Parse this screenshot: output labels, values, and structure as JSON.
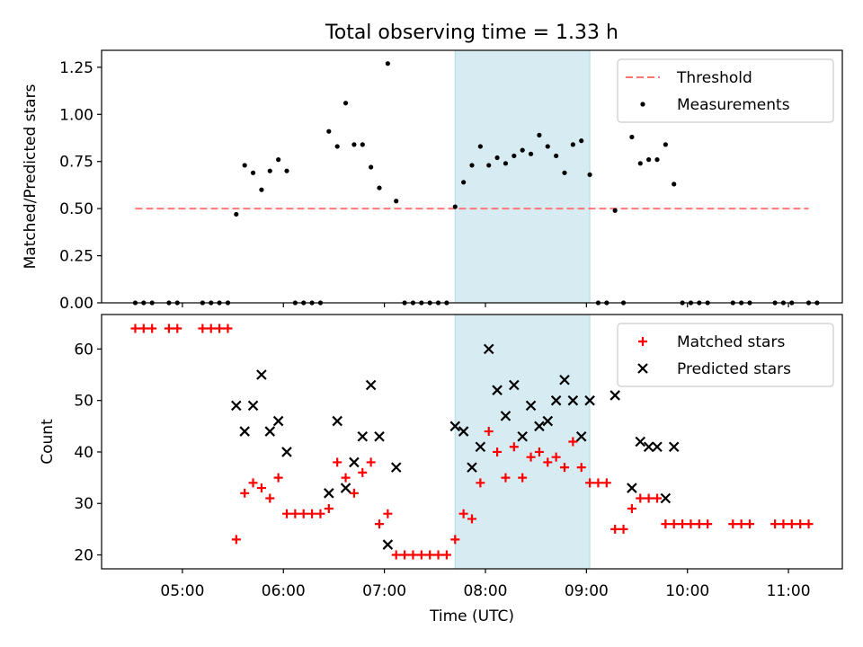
{
  "figure": {
    "title": "Total observing time = 1.33 h"
  },
  "chart_data": [
    {
      "type": "scatter",
      "panel": "top",
      "title": "Total observing time = 1.33 h",
      "xlabel": "",
      "ylabel": "Matched/Predicted stars",
      "xlim": [
        "04:12",
        "11:32"
      ],
      "ylim": [
        0,
        1.34
      ],
      "yticks": [
        "0.00",
        "0.25",
        "0.50",
        "0.75",
        "1.00",
        "1.25"
      ],
      "legend_position": "top-right",
      "shaded_interval": [
        "07:42",
        "09:02"
      ],
      "shaded_color": "#add8e6",
      "threshold": {
        "name": "Threshold",
        "value": 0.5,
        "x_range": [
          "04:32",
          "11:12"
        ],
        "color": "#ff7777",
        "style": "dashed"
      },
      "series": [
        {
          "name": "Measurements",
          "color": "#000000",
          "marker": "dot",
          "points": [
            [
              "04:32",
              0
            ],
            [
              "04:37",
              0
            ],
            [
              "04:42",
              0
            ],
            [
              "04:52",
              0
            ],
            [
              "04:57",
              0
            ],
            [
              "05:12",
              0
            ],
            [
              "05:17",
              0
            ],
            [
              "05:22",
              0
            ],
            [
              "05:27",
              0
            ],
            [
              "05:32",
              0.47
            ],
            [
              "05:37",
              0.73
            ],
            [
              "05:42",
              0.69
            ],
            [
              "05:47",
              0.6
            ],
            [
              "05:52",
              0.7
            ],
            [
              "05:57",
              0.76
            ],
            [
              "06:02",
              0.7
            ],
            [
              "06:07",
              0
            ],
            [
              "06:12",
              0
            ],
            [
              "06:17",
              0
            ],
            [
              "06:22",
              0
            ],
            [
              "06:27",
              0.91
            ],
            [
              "06:32",
              0.83
            ],
            [
              "06:37",
              1.06
            ],
            [
              "06:42",
              0.84
            ],
            [
              "06:47",
              0.84
            ],
            [
              "06:52",
              0.72
            ],
            [
              "06:57",
              0.61
            ],
            [
              "07:02",
              1.27
            ],
            [
              "07:07",
              0.54
            ],
            [
              "07:12",
              0
            ],
            [
              "07:17",
              0
            ],
            [
              "07:22",
              0
            ],
            [
              "07:27",
              0
            ],
            [
              "07:32",
              0
            ],
            [
              "07:37",
              0
            ],
            [
              "07:42",
              0.51
            ],
            [
              "07:47",
              0.64
            ],
            [
              "07:52",
              0.73
            ],
            [
              "07:57",
              0.83
            ],
            [
              "08:02",
              0.73
            ],
            [
              "08:07",
              0.77
            ],
            [
              "08:12",
              0.74
            ],
            [
              "08:17",
              0.78
            ],
            [
              "08:22",
              0.81
            ],
            [
              "08:27",
              0.79
            ],
            [
              "08:32",
              0.89
            ],
            [
              "08:37",
              0.83
            ],
            [
              "08:42",
              0.78
            ],
            [
              "08:47",
              0.69
            ],
            [
              "08:52",
              0.84
            ],
            [
              "08:57",
              0.86
            ],
            [
              "09:02",
              0.68
            ],
            [
              "09:07",
              0
            ],
            [
              "09:12",
              0
            ],
            [
              "09:17",
              0.49
            ],
            [
              "09:22",
              0
            ],
            [
              "09:27",
              0.88
            ],
            [
              "09:32",
              0.74
            ],
            [
              "09:37",
              0.76
            ],
            [
              "09:42",
              0.76
            ],
            [
              "09:47",
              0.84
            ],
            [
              "09:52",
              0.63
            ],
            [
              "09:57",
              0
            ],
            [
              "10:02",
              0
            ],
            [
              "10:07",
              0
            ],
            [
              "10:12",
              0
            ],
            [
              "10:27",
              0
            ],
            [
              "10:32",
              0
            ],
            [
              "10:37",
              0
            ],
            [
              "10:52",
              0
            ],
            [
              "10:57",
              0
            ],
            [
              "11:02",
              0
            ],
            [
              "11:12",
              0
            ],
            [
              "11:17",
              0
            ]
          ]
        }
      ]
    },
    {
      "type": "scatter",
      "panel": "bottom",
      "xlabel": "Time (UTC)",
      "ylabel": "Count",
      "xlim": [
        "04:12",
        "11:32"
      ],
      "ylim": [
        17.3,
        66.7
      ],
      "xticks": [
        "05:00",
        "06:00",
        "07:00",
        "08:00",
        "09:00",
        "10:00",
        "11:00"
      ],
      "yticks": [
        "20",
        "30",
        "40",
        "50",
        "60"
      ],
      "legend_position": "top-right",
      "shaded_interval": [
        "07:42",
        "09:02"
      ],
      "shaded_color": "#add8e6",
      "series": [
        {
          "name": "Matched stars",
          "color": "#ff0000",
          "marker": "plus",
          "points": [
            [
              "04:32",
              64
            ],
            [
              "04:37",
              64
            ],
            [
              "04:42",
              64
            ],
            [
              "04:52",
              64
            ],
            [
              "04:57",
              64
            ],
            [
              "05:12",
              64
            ],
            [
              "05:17",
              64
            ],
            [
              "05:22",
              64
            ],
            [
              "05:27",
              64
            ],
            [
              "05:32",
              23
            ],
            [
              "05:37",
              32
            ],
            [
              "05:42",
              34
            ],
            [
              "05:47",
              33
            ],
            [
              "05:52",
              31
            ],
            [
              "05:57",
              35
            ],
            [
              "06:02",
              28
            ],
            [
              "06:07",
              28
            ],
            [
              "06:12",
              28
            ],
            [
              "06:17",
              28
            ],
            [
              "06:22",
              28
            ],
            [
              "06:27",
              29
            ],
            [
              "06:32",
              38
            ],
            [
              "06:37",
              35
            ],
            [
              "06:42",
              32
            ],
            [
              "06:47",
              36
            ],
            [
              "06:52",
              38
            ],
            [
              "06:57",
              26
            ],
            [
              "07:02",
              28
            ],
            [
              "07:07",
              20
            ],
            [
              "07:12",
              20
            ],
            [
              "07:17",
              20
            ],
            [
              "07:22",
              20
            ],
            [
              "07:27",
              20
            ],
            [
              "07:32",
              20
            ],
            [
              "07:37",
              20
            ],
            [
              "07:42",
              23
            ],
            [
              "07:47",
              28
            ],
            [
              "07:52",
              27
            ],
            [
              "07:57",
              34
            ],
            [
              "08:02",
              44
            ],
            [
              "08:07",
              40
            ],
            [
              "08:12",
              35
            ],
            [
              "08:17",
              41
            ],
            [
              "08:22",
              35
            ],
            [
              "08:27",
              39
            ],
            [
              "08:32",
              40
            ],
            [
              "08:37",
              38
            ],
            [
              "08:42",
              39
            ],
            [
              "08:47",
              37
            ],
            [
              "08:52",
              42
            ],
            [
              "08:57",
              37
            ],
            [
              "09:02",
              34
            ],
            [
              "09:07",
              34
            ],
            [
              "09:12",
              34
            ],
            [
              "09:17",
              25
            ],
            [
              "09:22",
              25
            ],
            [
              "09:27",
              29
            ],
            [
              "09:32",
              31
            ],
            [
              "09:37",
              31
            ],
            [
              "09:42",
              31
            ],
            [
              "09:47",
              26
            ],
            [
              "09:52",
              26
            ],
            [
              "09:57",
              26
            ],
            [
              "10:02",
              26
            ],
            [
              "10:07",
              26
            ],
            [
              "10:12",
              26
            ],
            [
              "10:27",
              26
            ],
            [
              "10:32",
              26
            ],
            [
              "10:37",
              26
            ],
            [
              "10:52",
              26
            ],
            [
              "10:57",
              26
            ],
            [
              "11:02",
              26
            ],
            [
              "11:07",
              26
            ],
            [
              "11:12",
              26
            ]
          ]
        },
        {
          "name": "Predicted stars",
          "color": "#000000",
          "marker": "x",
          "points": [
            [
              "05:32",
              49
            ],
            [
              "05:37",
              44
            ],
            [
              "05:42",
              49
            ],
            [
              "05:47",
              55
            ],
            [
              "05:52",
              44
            ],
            [
              "05:57",
              46
            ],
            [
              "06:02",
              40
            ],
            [
              "06:27",
              32
            ],
            [
              "06:32",
              46
            ],
            [
              "06:37",
              33
            ],
            [
              "06:42",
              38
            ],
            [
              "06:47",
              43
            ],
            [
              "06:52",
              53
            ],
            [
              "06:57",
              43
            ],
            [
              "07:02",
              22
            ],
            [
              "07:07",
              37
            ],
            [
              "07:42",
              45
            ],
            [
              "07:47",
              44
            ],
            [
              "07:52",
              37
            ],
            [
              "07:57",
              41
            ],
            [
              "08:02",
              60
            ],
            [
              "08:07",
              52
            ],
            [
              "08:12",
              47
            ],
            [
              "08:17",
              53
            ],
            [
              "08:22",
              43
            ],
            [
              "08:27",
              49
            ],
            [
              "08:32",
              45
            ],
            [
              "08:37",
              46
            ],
            [
              "08:42",
              50
            ],
            [
              "08:47",
              54
            ],
            [
              "08:52",
              50
            ],
            [
              "08:57",
              43
            ],
            [
              "09:02",
              50
            ],
            [
              "09:17",
              51
            ],
            [
              "09:27",
              33
            ],
            [
              "09:32",
              42
            ],
            [
              "09:37",
              41
            ],
            [
              "09:42",
              41
            ],
            [
              "09:47",
              31
            ],
            [
              "09:52",
              41
            ]
          ]
        }
      ]
    }
  ]
}
